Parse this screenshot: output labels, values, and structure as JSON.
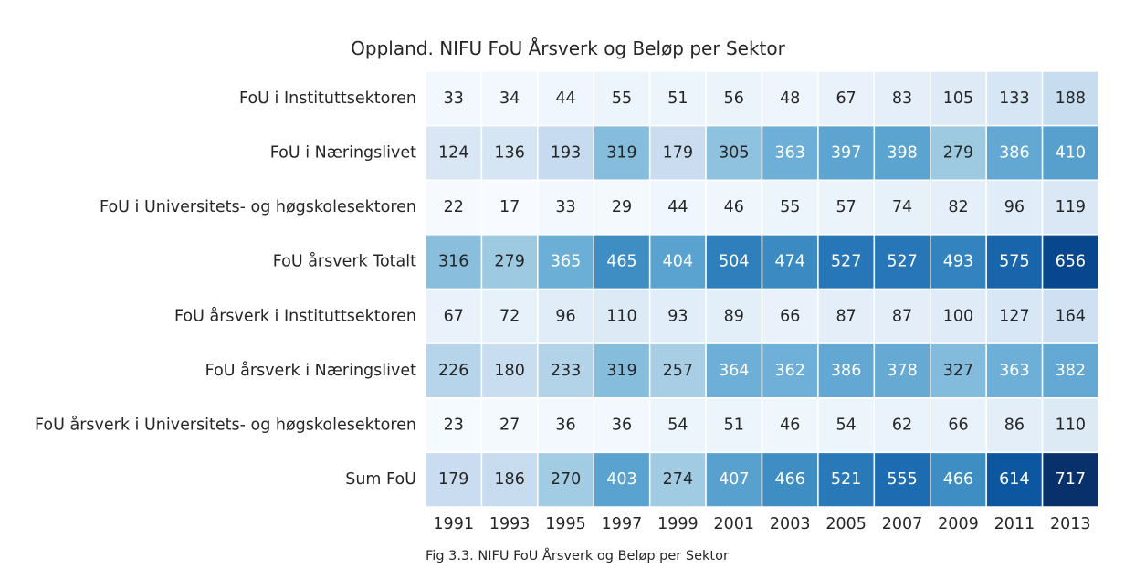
{
  "chart_data": {
    "type": "heatmap",
    "title": "Oppland. NIFU FoU Årsverk og Beløp per Sektor",
    "caption": "Fig 3.3. NIFU FoU Årsverk og Beløp per Sektor",
    "x": [
      "1991",
      "1993",
      "1995",
      "1997",
      "1999",
      "2001",
      "2003",
      "2005",
      "2007",
      "2009",
      "2011",
      "2013"
    ],
    "rows": [
      "FoU i Instituttsektoren",
      "FoU i Næringslivet",
      "FoU i Universitets- og høgskolesektoren",
      "FoU årsverk Totalt",
      "FoU årsverk i Instituttsektoren",
      "FoU årsverk i Næringslivet",
      "FoU årsverk i Universitets- og høgskolesektoren",
      "Sum FoU"
    ],
    "values": [
      [
        33,
        34,
        44,
        55,
        51,
        56,
        48,
        67,
        83,
        105,
        133,
        188
      ],
      [
        124,
        136,
        193,
        319,
        179,
        305,
        363,
        397,
        398,
        279,
        386,
        410
      ],
      [
        22,
        17,
        33,
        29,
        44,
        46,
        55,
        57,
        74,
        82,
        96,
        119
      ],
      [
        316,
        279,
        365,
        465,
        404,
        504,
        474,
        527,
        527,
        493,
        575,
        656
      ],
      [
        67,
        72,
        96,
        110,
        93,
        89,
        66,
        87,
        87,
        100,
        127,
        164
      ],
      [
        226,
        180,
        233,
        319,
        257,
        364,
        362,
        386,
        378,
        327,
        363,
        382
      ],
      [
        23,
        27,
        36,
        36,
        54,
        51,
        46,
        54,
        62,
        66,
        86,
        110
      ],
      [
        179,
        186,
        270,
        403,
        274,
        407,
        466,
        521,
        555,
        466,
        614,
        717
      ]
    ],
    "colormap": "Blues",
    "vmin": 17,
    "vmax": 717,
    "grid": false,
    "legend": "none"
  }
}
